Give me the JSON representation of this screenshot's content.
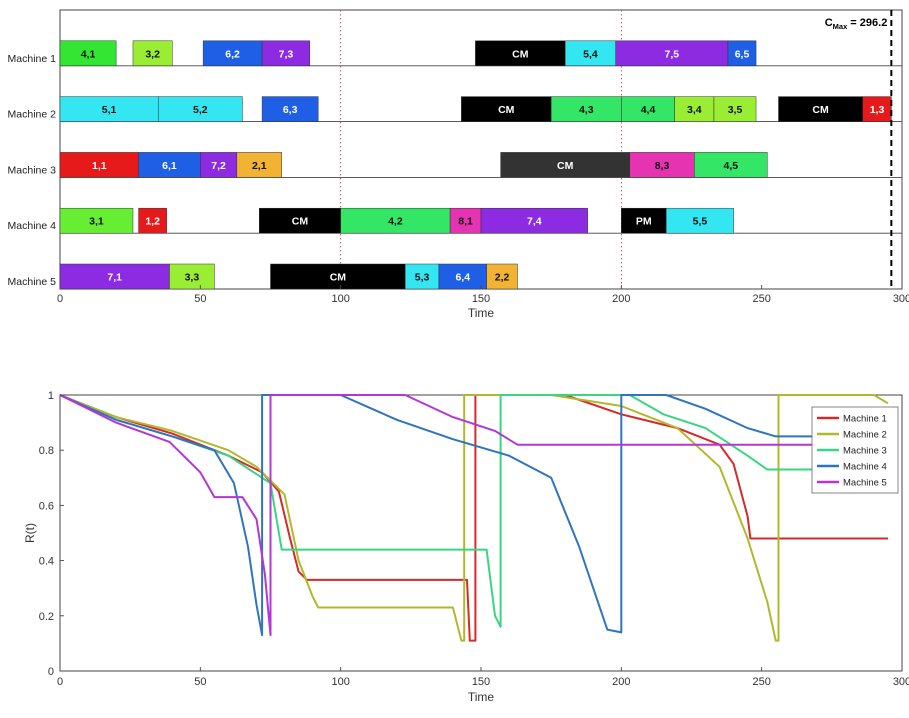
{
  "chart_data": [
    {
      "type": "gantt",
      "xlabel": "Time",
      "xlim": [
        0,
        300
      ],
      "xticks": [
        0,
        50,
        100,
        150,
        200,
        250,
        300
      ],
      "grid": "vertical dotted lines at 100 and 200",
      "annotation": {
        "label_main": "C",
        "label_sub": "Max",
        "label_value": "= 296.2",
        "x": 296.2
      },
      "machines": [
        {
          "label": "Machine 1",
          "tasks": [
            {
              "label": "4,1",
              "start": 0,
              "end": 20,
              "color": "#33e633"
            },
            {
              "label": "3,2",
              "start": 26,
              "end": 40,
              "color": "#99ee33"
            },
            {
              "label": "6,2",
              "start": 51,
              "end": 72,
              "color": "#1f5fe6"
            },
            {
              "label": "7,3",
              "start": 72,
              "end": 89,
              "color": "#8c2be2"
            },
            {
              "label": "CM",
              "start": 148,
              "end": 180,
              "color": "#000000"
            },
            {
              "label": "5,4",
              "start": 180,
              "end": 198,
              "color": "#33e6f2"
            },
            {
              "label": "7,5",
              "start": 198,
              "end": 238,
              "color": "#8c2be2"
            },
            {
              "label": "6,5",
              "start": 238,
              "end": 248,
              "color": "#1f5fe6"
            }
          ]
        },
        {
          "label": "Machine 2",
          "tasks": [
            {
              "label": "5,1",
              "start": 0,
              "end": 35,
              "color": "#33e6f2"
            },
            {
              "label": "5,2",
              "start": 35,
              "end": 65,
              "color": "#33e6f2"
            },
            {
              "label": "6,3",
              "start": 72,
              "end": 92,
              "color": "#1f5fe6"
            },
            {
              "label": "CM",
              "start": 143,
              "end": 175,
              "color": "#000000"
            },
            {
              "label": "4,3",
              "start": 175,
              "end": 200,
              "color": "#33e666"
            },
            {
              "label": "4,4",
              "start": 200,
              "end": 219,
              "color": "#33e666"
            },
            {
              "label": "3,4",
              "start": 219,
              "end": 233,
              "color": "#99ee33"
            },
            {
              "label": "3,5",
              "start": 233,
              "end": 248,
              "color": "#99ee33"
            },
            {
              "label": "CM",
              "start": 256,
              "end": 286,
              "color": "#000000"
            },
            {
              "label": "1,3",
              "start": 286,
              "end": 296.2,
              "color": "#e61a1a"
            }
          ]
        },
        {
          "label": "Machine 3",
          "tasks": [
            {
              "label": "1,1",
              "start": 0,
              "end": 28,
              "color": "#e61a1a"
            },
            {
              "label": "6,1",
              "start": 28,
              "end": 50,
              "color": "#1f5fe6"
            },
            {
              "label": "7,2",
              "start": 50,
              "end": 63,
              "color": "#8c2be2"
            },
            {
              "label": "2,1",
              "start": 63,
              "end": 79,
              "color": "#f2b233"
            },
            {
              "label": "CM",
              "start": 157,
              "end": 203,
              "color": "#333333"
            },
            {
              "label": "8,3",
              "start": 203,
              "end": 226,
              "color": "#e633b2"
            },
            {
              "label": "4,5",
              "start": 226,
              "end": 252,
              "color": "#33e666"
            }
          ]
        },
        {
          "label": "Machine 4",
          "tasks": [
            {
              "label": "3,1",
              "start": 0,
              "end": 26,
              "color": "#66ee33"
            },
            {
              "label": "1,2",
              "start": 28,
              "end": 38,
              "color": "#e61a1a"
            },
            {
              "label": "CM",
              "start": 71,
              "end": 100,
              "color": "#000000"
            },
            {
              "label": "4,2",
              "start": 100,
              "end": 139,
              "color": "#33e666"
            },
            {
              "label": "8,1",
              "start": 139,
              "end": 150,
              "color": "#e633b2"
            },
            {
              "label": "7,4",
              "start": 150,
              "end": 188,
              "color": "#8c2be2"
            },
            {
              "label": "PM",
              "start": 200,
              "end": 216,
              "color": "#000000"
            },
            {
              "label": "5,5",
              "start": 216,
              "end": 240,
              "color": "#33e6f2"
            }
          ]
        },
        {
          "label": "Machine 5",
          "tasks": [
            {
              "label": "7,1",
              "start": 0,
              "end": 39,
              "color": "#8c2be2"
            },
            {
              "label": "3,3",
              "start": 39,
              "end": 55,
              "color": "#99ee33"
            },
            {
              "label": "CM",
              "start": 75,
              "end": 123,
              "color": "#000000"
            },
            {
              "label": "5,3",
              "start": 123,
              "end": 135,
              "color": "#33e6f2"
            },
            {
              "label": "6,4",
              "start": 135,
              "end": 152,
              "color": "#1f5fe6"
            },
            {
              "label": "2,2",
              "start": 152,
              "end": 163,
              "color": "#f2b233"
            }
          ]
        }
      ]
    },
    {
      "type": "line",
      "xlabel": "Time",
      "ylabel": "R(t)",
      "xlim": [
        0,
        300
      ],
      "ylim": [
        0,
        1
      ],
      "xticks": [
        0,
        50,
        100,
        150,
        200,
        250,
        300
      ],
      "yticks": [
        0,
        0.2,
        0.4,
        0.6,
        0.8,
        1
      ],
      "legend": "top-right",
      "series": [
        {
          "name": "Machine 1",
          "color": "#d42a2a",
          "points": [
            [
              0,
              1
            ],
            [
              20,
              0.92
            ],
            [
              40,
              0.86
            ],
            [
              60,
              0.78
            ],
            [
              72,
              0.72
            ],
            [
              78,
              0.65
            ],
            [
              82,
              0.48
            ],
            [
              85,
              0.36
            ],
            [
              88,
              0.33
            ],
            [
              145,
              0.33
            ],
            [
              146,
              0.11
            ],
            [
              148,
              0.11
            ],
            [
              148,
              1
            ],
            [
              180,
              1
            ],
            [
              200,
              0.93
            ],
            [
              220,
              0.88
            ],
            [
              235,
              0.82
            ],
            [
              240,
              0.75
            ],
            [
              245,
              0.56
            ],
            [
              246,
              0.48
            ],
            [
              295,
              0.48
            ]
          ]
        },
        {
          "name": "Machine 2",
          "color": "#b2b82b",
          "points": [
            [
              0,
              1
            ],
            [
              20,
              0.92
            ],
            [
              40,
              0.87
            ],
            [
              60,
              0.8
            ],
            [
              70,
              0.74
            ],
            [
              80,
              0.64
            ],
            [
              85,
              0.4
            ],
            [
              90,
              0.27
            ],
            [
              92,
              0.23
            ],
            [
              140,
              0.23
            ],
            [
              143,
              0.11
            ],
            [
              144,
              0.11
            ],
            [
              144,
              1
            ],
            [
              175,
              1
            ],
            [
              200,
              0.96
            ],
            [
              220,
              0.88
            ],
            [
              235,
              0.74
            ],
            [
              245,
              0.48
            ],
            [
              252,
              0.25
            ],
            [
              255,
              0.11
            ],
            [
              256,
              0.11
            ],
            [
              256,
              1
            ],
            [
              290,
              1
            ],
            [
              295,
              0.97
            ]
          ]
        },
        {
          "name": "Machine 3",
          "color": "#38d682",
          "points": [
            [
              0,
              1
            ],
            [
              20,
              0.91
            ],
            [
              40,
              0.85
            ],
            [
              60,
              0.78
            ],
            [
              75,
              0.68
            ],
            [
              79,
              0.44
            ],
            [
              152,
              0.44
            ],
            [
              155,
              0.2
            ],
            [
              157,
              0.16
            ],
            [
              157,
              1
            ],
            [
              203,
              1
            ],
            [
              215,
              0.93
            ],
            [
              230,
              0.88
            ],
            [
              245,
              0.78
            ],
            [
              252,
              0.73
            ],
            [
              295,
              0.73
            ]
          ]
        },
        {
          "name": "Machine 4",
          "color": "#2f74c0",
          "points": [
            [
              0,
              1
            ],
            [
              20,
              0.91
            ],
            [
              40,
              0.85
            ],
            [
              55,
              0.8
            ],
            [
              62,
              0.68
            ],
            [
              67,
              0.45
            ],
            [
              70,
              0.24
            ],
            [
              72,
              0.13
            ],
            [
              72,
              1
            ],
            [
              100,
              1
            ],
            [
              120,
              0.91
            ],
            [
              140,
              0.84
            ],
            [
              160,
              0.78
            ],
            [
              175,
              0.7
            ],
            [
              185,
              0.45
            ],
            [
              195,
              0.15
            ],
            [
              200,
              0.14
            ],
            [
              200,
              1
            ],
            [
              216,
              1
            ],
            [
              230,
              0.95
            ],
            [
              245,
              0.88
            ],
            [
              255,
              0.85
            ],
            [
              295,
              0.85
            ]
          ]
        },
        {
          "name": "Machine 5",
          "color": "#b436d6",
          "points": [
            [
              0,
              1
            ],
            [
              20,
              0.9
            ],
            [
              39,
              0.83
            ],
            [
              50,
              0.72
            ],
            [
              55,
              0.63
            ],
            [
              65,
              0.63
            ],
            [
              70,
              0.55
            ],
            [
              73,
              0.35
            ],
            [
              75,
              0.13
            ],
            [
              75,
              1
            ],
            [
              123,
              1
            ],
            [
              140,
              0.92
            ],
            [
              155,
              0.87
            ],
            [
              163,
              0.82
            ],
            [
              295,
              0.82
            ]
          ]
        }
      ]
    }
  ]
}
